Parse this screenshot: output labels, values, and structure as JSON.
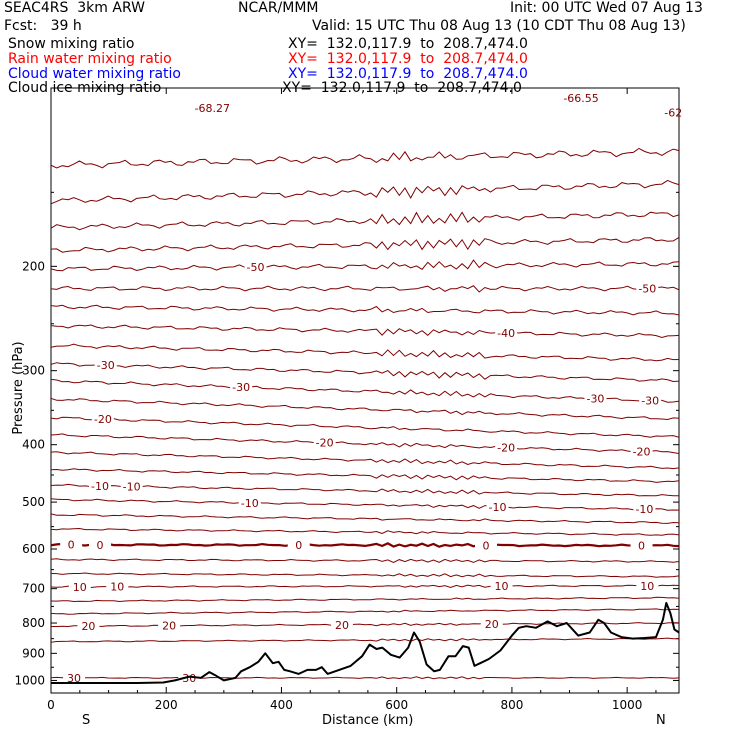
{
  "header": {
    "model": "SEAC4RS  3km ARW",
    "center": "NCAR/MMM",
    "init": "Init: 00 UTC Wed 07 Aug 13",
    "fcst": "Fcst:   39 h",
    "valid": "Valid: 15 UTC Thu 08 Aug 13 (10 CDT Thu 08 Aug 13)"
  },
  "legend": [
    {
      "name": "Snow mixing ratio",
      "xy": "XY=  132.0,117.9  to  208.7,474.0",
      "color": "#000000"
    },
    {
      "name": "Rain water mixing ratio",
      "xy": "XY=  132.0,117.9  to  208.7,474.0",
      "color": "#ff0000"
    },
    {
      "name": "Cloud water mixing ratio",
      "xy": "XY=  132.0,117.9  to  208.7,474.0",
      "color": "#0000ff"
    },
    {
      "name": "Cloud ice mixing ratio",
      "xy": "XY=  132.0,117.9  to  208.7,474.0",
      "color": "#000000"
    }
  ],
  "chart_data": {
    "type": "line",
    "xlabel": "Distance (km)",
    "ylabel": "Pressure (hPa)",
    "xlim": [
      0,
      1090
    ],
    "ylim": [
      1050,
      100
    ],
    "y_scale": "log",
    "x_ticks": [
      0,
      200,
      400,
      600,
      800,
      1000
    ],
    "y_ticks": [
      200,
      300,
      400,
      500,
      600,
      700,
      800,
      900,
      1000
    ],
    "x_end_labels": {
      "left": "S",
      "right": "N"
    },
    "contour_color": "#800000",
    "terrain_color": "#000000",
    "isotherms": [
      {
        "p": [
          135,
          128
        ],
        "label_x": [],
        "labels": []
      },
      {
        "p": [
          155,
          145
        ],
        "label_x": [],
        "labels": []
      },
      {
        "p": [
          172,
          163
        ],
        "label_x": [],
        "labels": []
      },
      {
        "p": [
          188,
          180
        ],
        "label_x": [],
        "labels": []
      },
      {
        "p": [
          202,
          198
        ],
        "label_x": [
          355
        ],
        "labels": [
          "-50"
        ]
      },
      {
        "p": [
          218,
          218
        ],
        "label_x": [
          1035
        ],
        "labels": [
          "-50"
        ]
      },
      {
        "p": [
          234,
          240
        ],
        "label_x": [],
        "labels": []
      },
      {
        "p": [
          252,
          262
        ],
        "label_x": [
          790
        ],
        "labels": [
          "-40"
        ]
      },
      {
        "p": [
          272,
          288
        ],
        "label_x": [],
        "labels": []
      },
      {
        "p": [
          292,
          312
        ],
        "label_x": [
          95
        ],
        "labels": [
          "-30"
        ]
      },
      {
        "p": [
          312,
          338
        ],
        "label_x": [
          330,
          945,
          1040
        ],
        "labels": [
          "-30",
          "-30",
          "-30"
        ]
      },
      {
        "p": [
          335,
          362
        ],
        "label_x": [],
        "labels": []
      },
      {
        "p": [
          360,
          388
        ],
        "label_x": [
          90
        ],
        "labels": [
          "-20"
        ]
      },
      {
        "p": [
          385,
          412
        ],
        "label_x": [
          475,
          790,
          1025
        ],
        "labels": [
          "-20",
          "-20",
          "-20"
        ]
      },
      {
        "p": [
          412,
          438
        ],
        "label_x": [],
        "labels": []
      },
      {
        "p": [
          440,
          462
        ],
        "label_x": [],
        "labels": []
      },
      {
        "p": [
          468,
          488
        ],
        "label_x": [
          85,
          140
        ],
        "labels": [
          "-10",
          "-10"
        ]
      },
      {
        "p": [
          495,
          515
        ],
        "label_x": [
          345,
          775,
          1030
        ],
        "labels": [
          "-10",
          "-10",
          "-10"
        ]
      },
      {
        "p": [
          525,
          542
        ],
        "label_x": [],
        "labels": []
      },
      {
        "p": [
          555,
          568
        ],
        "label_x": [],
        "labels": []
      },
      {
        "p": [
          590,
          592
        ],
        "label_x": [
          35,
          85,
          430,
          755,
          1025
        ],
        "labels": [
          "0",
          "0",
          "0",
          "0",
          "0"
        ],
        "bold": true
      },
      {
        "p": [
          625,
          630
        ],
        "label_x": [],
        "labels": []
      },
      {
        "p": [
          660,
          668
        ],
        "label_x": [],
        "labels": []
      },
      {
        "p": [
          695,
          692
        ],
        "label_x": [
          50,
          115,
          782,
          1035
        ],
        "labels": [
          "10",
          "10",
          "10",
          "10"
        ]
      },
      {
        "p": [
          735,
          725
        ],
        "label_x": [],
        "labels": []
      },
      {
        "p": [
          772,
          758
        ],
        "label_x": [],
        "labels": []
      },
      {
        "p": [
          810,
          800
        ],
        "label_x": [
          65,
          205,
          505,
          765
        ],
        "labels": [
          "20",
          "20",
          "20",
          "20"
        ]
      },
      {
        "p": [
          860,
          850
        ],
        "label_x": [],
        "labels": []
      },
      {
        "p": [
          990,
          990
        ],
        "label_x": [
          40,
          240
        ],
        "labels": [
          "30",
          "30"
        ]
      }
    ],
    "top_partial_labels": [
      {
        "x": 280,
        "p": 108,
        "label": "-68.27"
      },
      {
        "x": 920,
        "p": 104,
        "label": "-66.55"
      },
      {
        "x": 1080,
        "p": 110,
        "label": "-62"
      }
    ],
    "terrain": {
      "x": [
        0,
        50,
        100,
        150,
        195,
        215,
        240,
        260,
        275,
        285,
        300,
        320,
        330,
        345,
        360,
        372,
        385,
        395,
        405,
        415,
        430,
        445,
        460,
        470,
        480,
        500,
        520,
        540,
        553,
        565,
        575,
        590,
        605,
        620,
        630,
        640,
        652,
        665,
        675,
        690,
        702,
        715,
        725,
        735,
        745,
        760,
        780,
        800,
        812,
        825,
        842,
        862,
        878,
        895,
        915,
        935,
        950,
        960,
        972,
        990,
        1010,
        1030,
        1050,
        1062,
        1068,
        1075,
        1082,
        1090
      ],
      "p": [
        1010,
        1010,
        1010,
        1010,
        1008,
        1000,
        985,
        990,
        968,
        980,
        1000,
        990,
        965,
        950,
        930,
        900,
        935,
        930,
        960,
        965,
        975,
        960,
        960,
        950,
        975,
        960,
        945,
        910,
        870,
        885,
        880,
        905,
        915,
        880,
        830,
        860,
        940,
        965,
        960,
        910,
        910,
        875,
        880,
        945,
        935,
        920,
        890,
        840,
        815,
        810,
        815,
        795,
        810,
        800,
        840,
        830,
        790,
        800,
        830,
        845,
        850,
        848,
        845,
        790,
        740,
        770,
        820,
        830
      ]
    }
  }
}
